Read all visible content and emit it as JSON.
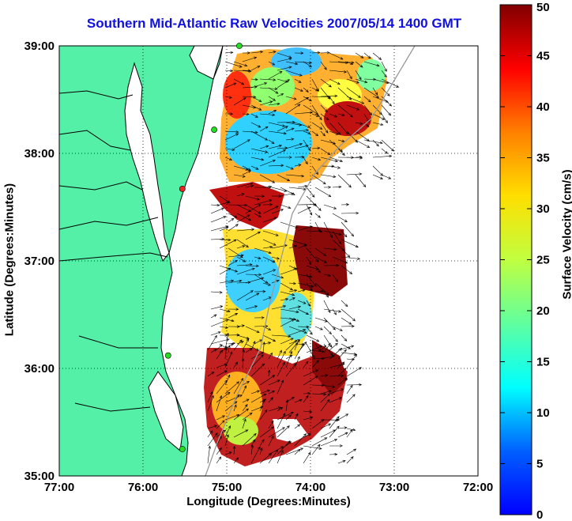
{
  "title": "Southern Mid-Atlantic Raw Velocities 2007/05/14 1400 GMT",
  "map": {
    "xlabel": "Longitude (Degrees:Minutes)",
    "ylabel": "Latitude (Degrees:Minutes)",
    "x_ticks": [
      "77:00",
      "76:00",
      "75:00",
      "74:00",
      "73:00",
      "72:00"
    ],
    "y_ticks": [
      "39:00",
      "38:00",
      "37:00",
      "36:00",
      "35:00"
    ],
    "lon_range": [
      -77,
      -72
    ],
    "lat_range": [
      35,
      39
    ],
    "grid": "dotted",
    "land_color": "#55f0a8",
    "coast_color": "#000000"
  },
  "colorbar": {
    "label": "Surface Velocity (cm/s)",
    "ticks": [
      "50",
      "45",
      "40",
      "35",
      "30",
      "25",
      "20",
      "15",
      "10",
      "5",
      "0"
    ],
    "range": [
      0,
      50
    ],
    "colormap": "jet"
  },
  "stations": [
    {
      "color": "#22dd22",
      "lon": -74.85,
      "lat": 39.0
    },
    {
      "color": "#22dd22",
      "lon": -75.15,
      "lat": 38.22
    },
    {
      "color": "#ee2222",
      "lon": -75.53,
      "lat": 37.67
    },
    {
      "color": "#22dd22",
      "lon": -75.7,
      "lat": 36.12
    },
    {
      "color": "#22dd22",
      "lon": -75.53,
      "lat": 35.25
    }
  ]
}
